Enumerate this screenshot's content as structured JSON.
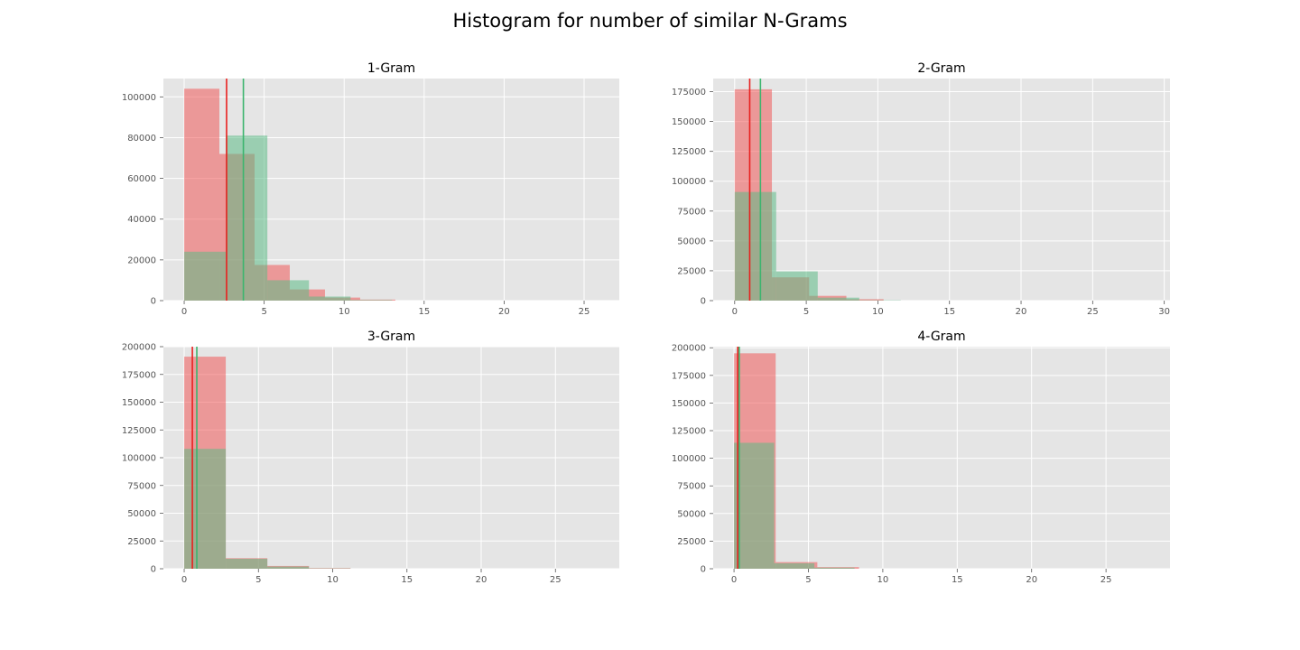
{
  "figure": {
    "title": "Histogram for number of similar N-Grams",
    "colors": {
      "red": "#f0595a",
      "green": "#5cbc87",
      "red_line": "#e8201e",
      "green_line": "#3cb56e",
      "bg": "#e5e5e5"
    }
  },
  "chart_data": [
    {
      "type": "histogram",
      "title": "1-Gram",
      "xlim": [
        -1.3,
        27.2
      ],
      "ylim": [
        0,
        109000
      ],
      "xticks": [
        0,
        5,
        10,
        15,
        20,
        25
      ],
      "yticks": [
        0,
        20000,
        40000,
        60000,
        80000,
        100000
      ],
      "series": [
        {
          "color": "red",
          "mean": 2.65,
          "bins": [
            [
              0,
              2.2,
              104000
            ],
            [
              2.2,
              4.4,
              72000
            ],
            [
              4.4,
              6.6,
              17500
            ],
            [
              6.6,
              8.8,
              5500
            ],
            [
              8.8,
              11,
              1500
            ],
            [
              11,
              13.2,
              500
            ]
          ]
        },
        {
          "color": "green",
          "mean": 3.7,
          "bins": [
            [
              0,
              2.6,
              24000
            ],
            [
              2.6,
              5.2,
              81000
            ],
            [
              5.2,
              7.8,
              10000
            ],
            [
              7.8,
              10.4,
              2000
            ],
            [
              10.4,
              13,
              300
            ]
          ]
        }
      ]
    },
    {
      "type": "histogram",
      "title": "2-Gram",
      "xlim": [
        -1.5,
        30.4
      ],
      "ylim": [
        0,
        186000
      ],
      "xticks": [
        0,
        5,
        10,
        15,
        20,
        25,
        30
      ],
      "yticks": [
        0,
        25000,
        50000,
        75000,
        100000,
        125000,
        150000,
        175000
      ],
      "series": [
        {
          "color": "red",
          "mean": 1.05,
          "bins": [
            [
              0,
              2.6,
              177000
            ],
            [
              2.6,
              5.2,
              19500
            ],
            [
              5.2,
              7.8,
              4000
            ],
            [
              7.8,
              10.4,
              1200
            ]
          ]
        },
        {
          "color": "green",
          "mean": 1.8,
          "bins": [
            [
              0,
              2.9,
              91000
            ],
            [
              2.9,
              5.8,
              24500
            ],
            [
              5.8,
              8.7,
              2500
            ],
            [
              8.7,
              11.6,
              300
            ]
          ]
        }
      ]
    },
    {
      "type": "histogram",
      "title": "3-Gram",
      "xlim": [
        -1.4,
        29.3
      ],
      "ylim": [
        0,
        200000
      ],
      "xticks": [
        0,
        5,
        10,
        15,
        20,
        25
      ],
      "yticks": [
        0,
        25000,
        50000,
        75000,
        100000,
        125000,
        150000,
        175000,
        200000
      ],
      "series": [
        {
          "color": "red",
          "mean": 0.55,
          "bins": [
            [
              0,
              2.8,
              191000
            ],
            [
              2.8,
              5.6,
              9500
            ],
            [
              5.6,
              8.4,
              2500
            ],
            [
              8.4,
              11.2,
              600
            ]
          ]
        },
        {
          "color": "green",
          "mean": 0.85,
          "bins": [
            [
              0,
              2.8,
              108000
            ],
            [
              2.8,
              5.6,
              9000
            ],
            [
              5.6,
              8.4,
              2000
            ],
            [
              8.4,
              11.2,
              300
            ]
          ]
        }
      ]
    },
    {
      "type": "histogram",
      "title": "4-Gram",
      "xlim": [
        -1.4,
        29.3
      ],
      "ylim": [
        0,
        201000
      ],
      "xticks": [
        0,
        5,
        10,
        15,
        20,
        25
      ],
      "yticks": [
        0,
        25000,
        50000,
        75000,
        100000,
        125000,
        150000,
        175000,
        200000
      ],
      "series": [
        {
          "color": "red",
          "mean": 0.25,
          "bins": [
            [
              0,
              2.8,
              195000
            ],
            [
              2.8,
              5.6,
              6000
            ],
            [
              5.6,
              8.4,
              1500
            ]
          ]
        },
        {
          "color": "green",
          "mean": 0.35,
          "bins": [
            [
              0,
              2.7,
              114000
            ],
            [
              2.7,
              5.4,
              5000
            ],
            [
              5.4,
              8.1,
              1000
            ]
          ]
        }
      ]
    }
  ]
}
